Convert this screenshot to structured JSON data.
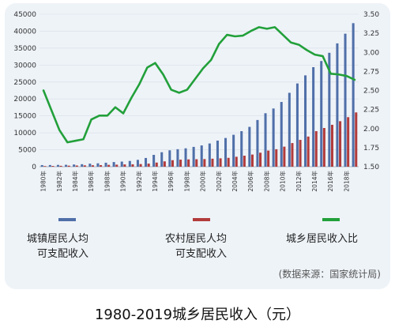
{
  "chart_data": {
    "type": "bar+line",
    "title": "",
    "categories": [
      "1980",
      "1981",
      "1982",
      "1983",
      "1984",
      "1985",
      "1986",
      "1987",
      "1988",
      "1989",
      "1990",
      "1991",
      "1992",
      "1993",
      "1994",
      "1995",
      "1996",
      "1997",
      "1998",
      "1999",
      "2000",
      "2001",
      "2002",
      "2003",
      "2004",
      "2005",
      "2006",
      "2007",
      "2008",
      "2009",
      "2010",
      "2011",
      "2012",
      "2013",
      "2014",
      "2015",
      "2016",
      "2017",
      "2018",
      "2019"
    ],
    "x_tick_labels": [
      "1980年",
      "1982年",
      "1984年",
      "1986年",
      "1988年",
      "1990年",
      "1992年",
      "1994年",
      "1996年",
      "1998年",
      "2000年",
      "2002年",
      "2004年",
      "2006年",
      "2008年",
      "2010年",
      "2012年",
      "2014年",
      "2016年",
      "2018年"
    ],
    "left_axis": {
      "ticks": [
        "0",
        "5000",
        "10000",
        "15000",
        "20000",
        "25000",
        "30000",
        "35000",
        "40000",
        "45000"
      ],
      "ylim": [
        0,
        45000
      ]
    },
    "right_axis": {
      "ticks": [
        "1.50",
        "1.75",
        "2.00",
        "2.25",
        "2.50",
        "2.75",
        "3.00",
        "3.25",
        "3.50"
      ],
      "ylim": [
        1.5,
        3.5
      ]
    },
    "series": [
      {
        "name": "城镇居民人均可支配收入",
        "kind": "bar",
        "axis": "left",
        "color": "#4f6fa8",
        "values": [
          478,
          500,
          535,
          565,
          652,
          739,
          900,
          1002,
          1180,
          1374,
          1510,
          1701,
          2027,
          2577,
          3496,
          4283,
          4839,
          5160,
          5425,
          5854,
          6280,
          6860,
          7703,
          8472,
          9422,
          10493,
          11759,
          13786,
          15781,
          17175,
          19109,
          21810,
          24565,
          26955,
          29381,
          31195,
          33616,
          36396,
          39251,
          42359
        ]
      },
      {
        "name": "农村居民人均可支配收入",
        "kind": "bar",
        "axis": "left",
        "color": "#b23b3b",
        "values": [
          191,
          223,
          270,
          310,
          355,
          398,
          424,
          463,
          545,
          602,
          686,
          709,
          784,
          922,
          1221,
          1578,
          1926,
          2090,
          2162,
          2210,
          2253,
          2366,
          2476,
          2622,
          2936,
          3255,
          3587,
          4140,
          4761,
          5153,
          5919,
          6977,
          7917,
          8896,
          10489,
          11422,
          12363,
          13432,
          14617,
          16021
        ]
      },
      {
        "name": "城乡居民收入比",
        "kind": "line",
        "axis": "right",
        "color": "#22a03a",
        "values": [
          2.5,
          2.24,
          1.98,
          1.82,
          1.84,
          1.86,
          2.12,
          2.17,
          2.17,
          2.28,
          2.2,
          2.4,
          2.58,
          2.8,
          2.86,
          2.71,
          2.51,
          2.47,
          2.51,
          2.65,
          2.79,
          2.9,
          3.11,
          3.23,
          3.21,
          3.22,
          3.28,
          3.33,
          3.31,
          3.33,
          3.23,
          3.13,
          3.1,
          3.03,
          2.97,
          2.95,
          2.72,
          2.71,
          2.69,
          2.64
        ]
      }
    ],
    "legend": {
      "urban": [
        "城镇居民人均",
        "可支配收入"
      ],
      "rural": [
        "农村居民人均",
        "可支配收入"
      ],
      "ratio": [
        "城乡居民收入比"
      ]
    },
    "source": "(数据来源：国家统计局)"
  },
  "caption": "1980-2019城乡居民收入（元）"
}
